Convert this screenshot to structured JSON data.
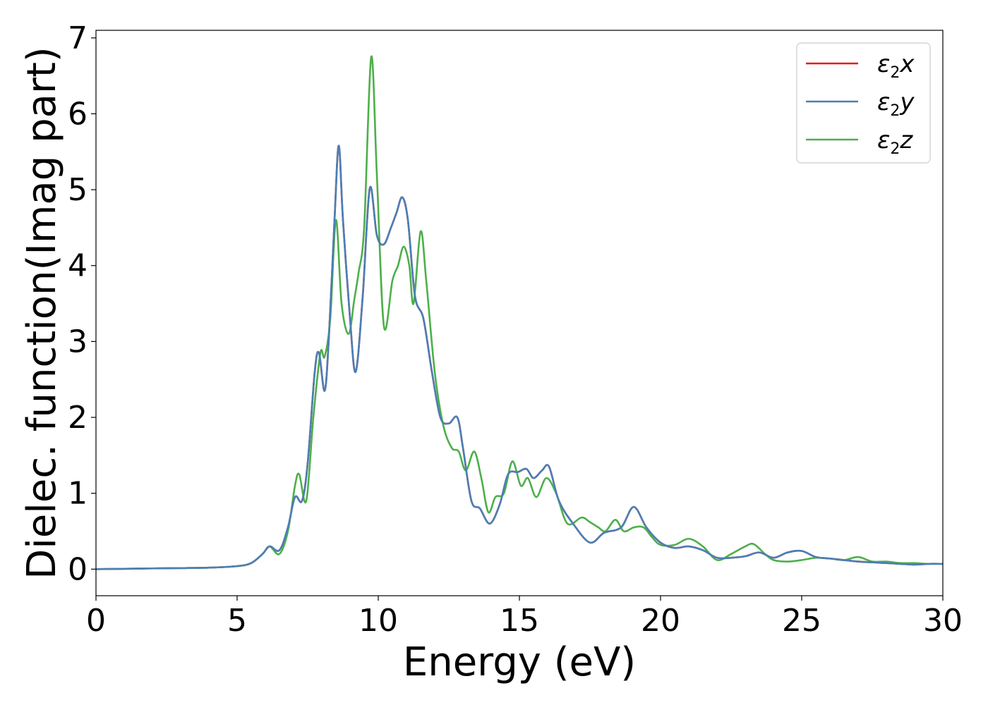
{
  "chart_data": {
    "type": "line",
    "xlabel": "Energy (eV)",
    "ylabel": "Dielec. function(Imag part)",
    "xlim": [
      0,
      30
    ],
    "ylim": [
      -0.35,
      7.1
    ],
    "xticks": [
      0,
      5,
      10,
      15,
      20,
      25,
      30
    ],
    "yticks": [
      0,
      1,
      2,
      3,
      4,
      5,
      6,
      7
    ],
    "grid": false,
    "legend_position": "top-right",
    "series": [
      {
        "name": "ε2x",
        "legend_base": "ε",
        "legend_sub": "2",
        "legend_tail": "x",
        "color": "#e41a1c",
        "x": [
          0,
          2,
          4,
          5,
          5.5,
          5.9,
          6.15,
          6.5,
          6.8,
          7.05,
          7.3,
          7.5,
          7.75,
          7.9,
          8.1,
          8.25,
          8.45,
          8.6,
          8.75,
          9.0,
          9.2,
          9.45,
          9.7,
          9.95,
          10.2,
          10.45,
          10.65,
          10.85,
          11.05,
          11.3,
          11.6,
          11.9,
          12.2,
          12.5,
          12.8,
          13.0,
          13.3,
          13.6,
          13.95,
          14.3,
          14.6,
          14.95,
          15.25,
          15.5,
          15.8,
          16.05,
          16.4,
          16.9,
          17.5,
          18.0,
          18.6,
          19.05,
          19.5,
          20.0,
          20.5,
          21.0,
          21.5,
          22.0,
          22.5,
          23.0,
          23.5,
          24.0,
          24.5,
          25.0,
          25.5,
          26.0,
          26.5,
          27.0,
          27.5,
          28.0,
          28.5,
          29.0,
          29.5,
          30.0
        ],
        "y": [
          0.0,
          0.01,
          0.02,
          0.04,
          0.08,
          0.2,
          0.3,
          0.25,
          0.55,
          0.95,
          0.9,
          1.4,
          2.6,
          2.85,
          2.35,
          3.05,
          4.6,
          5.58,
          4.6,
          3.3,
          2.6,
          3.6,
          5.02,
          4.4,
          4.28,
          4.5,
          4.7,
          4.9,
          4.6,
          3.6,
          3.3,
          2.6,
          2.0,
          1.92,
          2.0,
          1.6,
          0.9,
          0.8,
          0.6,
          0.85,
          1.25,
          1.28,
          1.32,
          1.2,
          1.3,
          1.35,
          0.9,
          0.6,
          0.35,
          0.48,
          0.55,
          0.82,
          0.55,
          0.35,
          0.28,
          0.3,
          0.25,
          0.15,
          0.15,
          0.17,
          0.22,
          0.15,
          0.22,
          0.24,
          0.16,
          0.14,
          0.12,
          0.1,
          0.09,
          0.08,
          0.07,
          0.06,
          0.07,
          0.07
        ]
      },
      {
        "name": "ε2y",
        "legend_base": "ε",
        "legend_sub": "2",
        "legend_tail": "y",
        "color": "#4a7fb5",
        "x": [
          0,
          2,
          4,
          5,
          5.5,
          5.9,
          6.15,
          6.5,
          6.8,
          7.05,
          7.3,
          7.5,
          7.75,
          7.9,
          8.1,
          8.25,
          8.45,
          8.6,
          8.75,
          9.0,
          9.2,
          9.45,
          9.7,
          9.95,
          10.2,
          10.45,
          10.65,
          10.85,
          11.05,
          11.3,
          11.6,
          11.9,
          12.2,
          12.5,
          12.8,
          13.0,
          13.3,
          13.6,
          13.95,
          14.3,
          14.6,
          14.95,
          15.25,
          15.5,
          15.8,
          16.05,
          16.4,
          16.9,
          17.5,
          18.0,
          18.6,
          19.05,
          19.5,
          20.0,
          20.5,
          21.0,
          21.5,
          22.0,
          22.5,
          23.0,
          23.5,
          24.0,
          24.5,
          25.0,
          25.5,
          26.0,
          26.5,
          27.0,
          27.5,
          28.0,
          28.5,
          29.0,
          29.5,
          30.0
        ],
        "y": [
          0.0,
          0.01,
          0.02,
          0.04,
          0.08,
          0.2,
          0.3,
          0.25,
          0.55,
          0.95,
          0.9,
          1.4,
          2.6,
          2.85,
          2.35,
          3.05,
          4.6,
          5.58,
          4.6,
          3.3,
          2.6,
          3.6,
          5.02,
          4.4,
          4.28,
          4.5,
          4.7,
          4.9,
          4.6,
          3.6,
          3.3,
          2.6,
          2.0,
          1.92,
          2.0,
          1.6,
          0.9,
          0.8,
          0.6,
          0.85,
          1.25,
          1.28,
          1.32,
          1.2,
          1.3,
          1.35,
          0.9,
          0.6,
          0.35,
          0.48,
          0.55,
          0.82,
          0.55,
          0.35,
          0.28,
          0.3,
          0.25,
          0.15,
          0.15,
          0.17,
          0.22,
          0.15,
          0.22,
          0.24,
          0.16,
          0.14,
          0.12,
          0.1,
          0.09,
          0.08,
          0.07,
          0.06,
          0.07,
          0.07
        ]
      },
      {
        "name": "ε2z",
        "legend_base": "ε",
        "legend_sub": "2",
        "legend_tail": "z",
        "color": "#4daf4a",
        "x": [
          0,
          2,
          4,
          5,
          5.5,
          5.9,
          6.15,
          6.5,
          6.8,
          7.05,
          7.2,
          7.45,
          7.7,
          7.95,
          8.1,
          8.3,
          8.5,
          8.7,
          8.95,
          9.15,
          9.3,
          9.5,
          9.75,
          9.95,
          10.2,
          10.5,
          10.7,
          10.9,
          11.1,
          11.25,
          11.5,
          11.7,
          12.0,
          12.3,
          12.6,
          12.85,
          13.1,
          13.4,
          13.65,
          13.9,
          14.15,
          14.45,
          14.75,
          15.05,
          15.3,
          15.6,
          15.95,
          16.3,
          16.7,
          17.2,
          17.5,
          17.8,
          18.05,
          18.4,
          18.7,
          19.05,
          19.4,
          19.7,
          20.0,
          20.5,
          21.0,
          21.5,
          22.0,
          22.5,
          23.0,
          23.3,
          23.7,
          24.0,
          24.5,
          25.0,
          25.5,
          26.0,
          26.5,
          27.0,
          27.5,
          28.0,
          28.5,
          29.0,
          29.5,
          30.0
        ],
        "y": [
          0.0,
          0.01,
          0.02,
          0.04,
          0.08,
          0.2,
          0.3,
          0.2,
          0.5,
          1.1,
          1.25,
          0.9,
          2.0,
          2.85,
          2.8,
          3.3,
          4.6,
          3.5,
          3.1,
          3.55,
          3.9,
          4.5,
          6.75,
          5.2,
          3.2,
          3.8,
          4.0,
          4.25,
          4.0,
          3.5,
          4.45,
          3.8,
          2.6,
          1.9,
          1.6,
          1.55,
          1.3,
          1.55,
          1.2,
          0.75,
          0.95,
          1.0,
          1.42,
          1.1,
          1.2,
          0.95,
          1.2,
          1.0,
          0.6,
          0.68,
          0.62,
          0.55,
          0.5,
          0.65,
          0.5,
          0.55,
          0.55,
          0.42,
          0.32,
          0.32,
          0.4,
          0.3,
          0.12,
          0.2,
          0.3,
          0.33,
          0.2,
          0.12,
          0.1,
          0.12,
          0.15,
          0.14,
          0.12,
          0.16,
          0.1,
          0.1,
          0.08,
          0.08,
          0.07,
          0.07
        ]
      }
    ]
  }
}
